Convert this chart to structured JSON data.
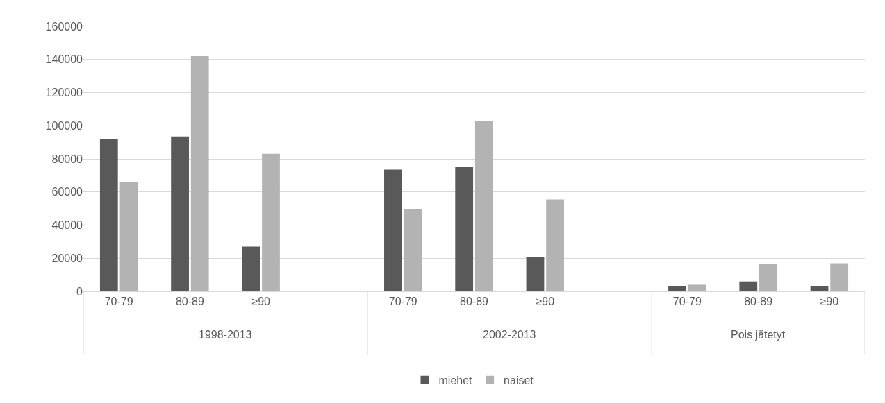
{
  "chart_data": {
    "type": "bar",
    "categories": [
      "70-79",
      "80-89",
      "≥90",
      null,
      "70-79",
      "80-89",
      "≥90",
      null,
      "70-79",
      "80-89",
      "≥90"
    ],
    "series": [
      {
        "name": "miehet",
        "color": "#595959",
        "values": [
          92000,
          93500,
          27000,
          null,
          73500,
          75000,
          20500,
          null,
          3000,
          6000,
          3000
        ]
      },
      {
        "name": "naiset",
        "color": "#b3b3b3",
        "values": [
          66000,
          142000,
          83000,
          null,
          49500,
          103000,
          55500,
          null,
          4000,
          16500,
          17000
        ]
      }
    ],
    "annotations": [
      "1998-2013",
      "2002-2013",
      "Pois jätetyt"
    ],
    "ylim": [
      0,
      160000
    ],
    "yticks": [
      0,
      20000,
      40000,
      60000,
      80000,
      100000,
      120000,
      140000,
      160000
    ],
    "grid": "y",
    "legend": "bottom"
  }
}
